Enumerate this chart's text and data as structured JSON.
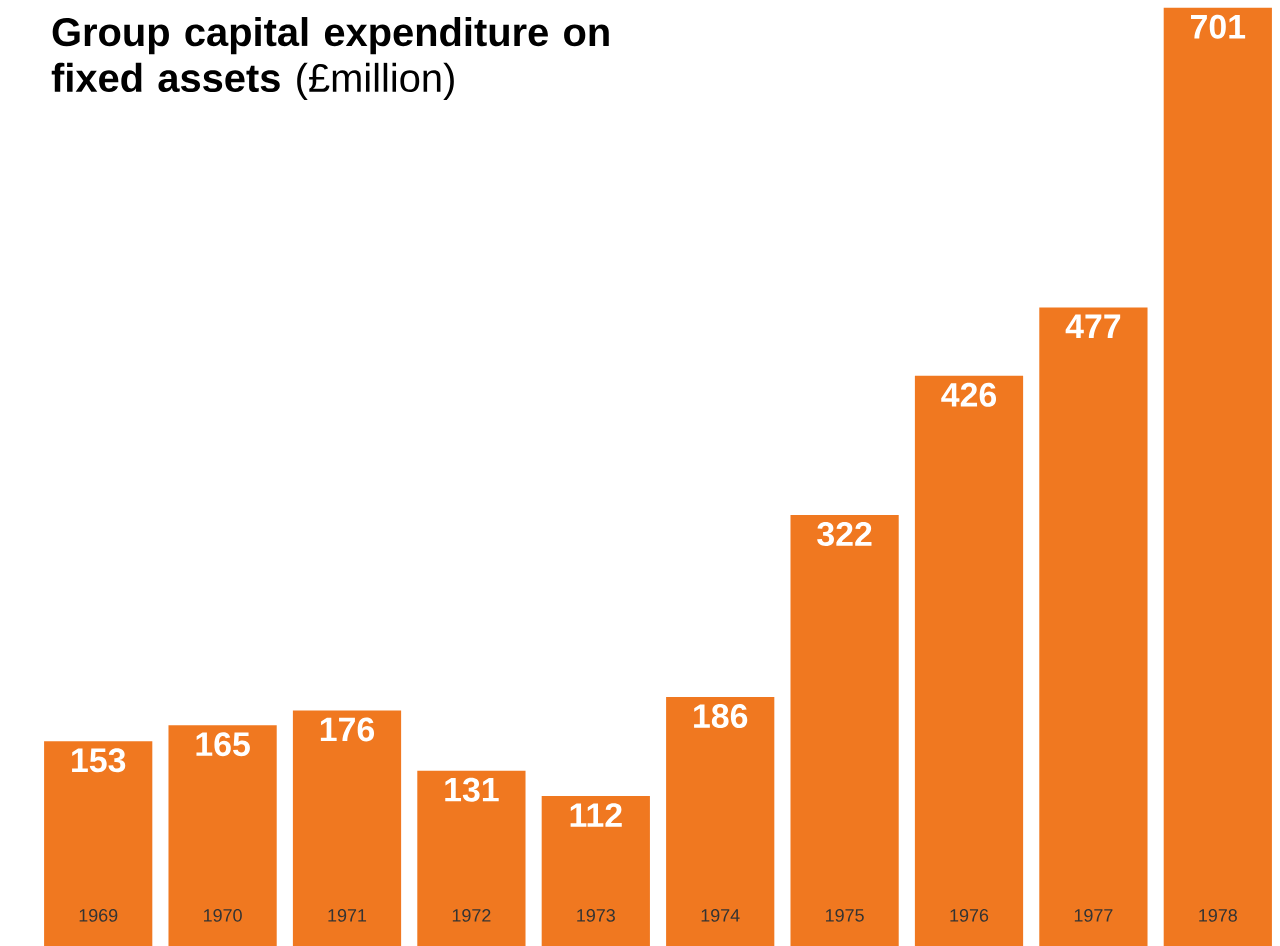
{
  "chart_data": {
    "type": "bar",
    "title": "**Group capital expenditure on fixed assets** (£million)",
    "categories": [
      "1969",
      "1970",
      "1971",
      "1972",
      "1973",
      "1974",
      "1975",
      "1976",
      "1977",
      "1978"
    ],
    "values": [
      153,
      165,
      176,
      131,
      112,
      186,
      322,
      426,
      477,
      701
    ],
    "color": "#f07820",
    "data_labels": true
  }
}
